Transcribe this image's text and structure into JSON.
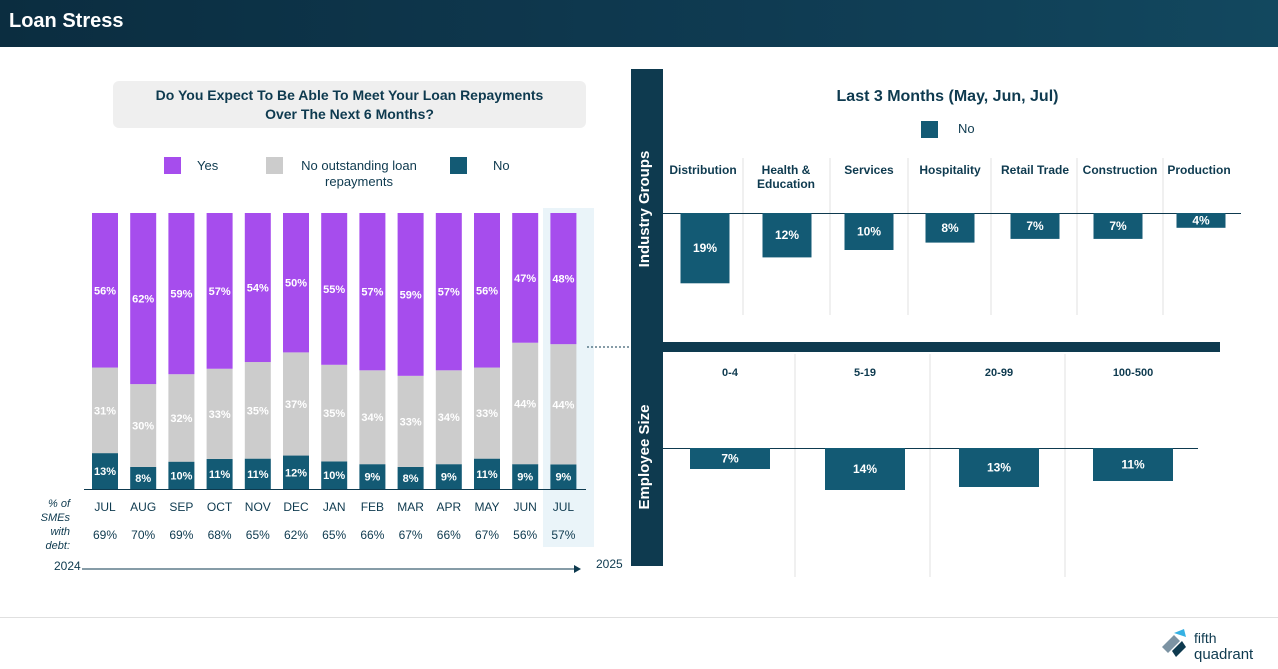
{
  "header": {
    "title": "Loan Stress"
  },
  "left_chart": {
    "question_line1": "Do You Expect To Be Able To Meet Your Loan Repayments",
    "question_line2": "Over The Next 6 Months?",
    "legend": {
      "yes": "Yes",
      "no_outstanding_line1": "No outstanding loan",
      "no_outstanding_line2": "repayments",
      "no": "No"
    },
    "debt_label_lines": [
      "% of",
      "SMEs",
      "with",
      "debt:"
    ],
    "year_start": "2024",
    "year_end": "2025"
  },
  "right_chart": {
    "title": "Last 3 Months (May, Jun, Jul)",
    "legend_no": "No",
    "industry_side_label": "Industry Groups",
    "employee_side_label": "Employee Size",
    "industry_categories": [
      "Distribution",
      "Health &",
      "Education",
      "Services",
      "Hospitality",
      "Retail Trade",
      "Construction",
      "Production"
    ],
    "employee_categories": [
      "0-4",
      "5-19",
      "20-99",
      "100-500"
    ]
  },
  "colors": {
    "yes": "#a64ded",
    "no_outstanding": "#cccccc",
    "no": "#135a74",
    "dark": "#0e3a4f"
  },
  "chart_data": [
    {
      "type": "bar",
      "stacked": true,
      "title": "Do You Expect To Be Able To Meet Your Loan Repayments Over The Next 6 Months?",
      "categories": [
        "JUL",
        "AUG",
        "SEP",
        "OCT",
        "NOV",
        "DEC",
        "JAN",
        "FEB",
        "MAR",
        "APR",
        "MAY",
        "JUN",
        "JUL"
      ],
      "series": [
        {
          "name": "No",
          "values": [
            13,
            8,
            10,
            11,
            11,
            12,
            10,
            9,
            8,
            9,
            11,
            9,
            9
          ]
        },
        {
          "name": "No outstanding loan repayments",
          "values": [
            31,
            30,
            32,
            33,
            35,
            37,
            35,
            34,
            33,
            34,
            33,
            44,
            44
          ]
        },
        {
          "name": "Yes",
          "values": [
            56,
            62,
            59,
            57,
            54,
            50,
            55,
            57,
            59,
            57,
            56,
            47,
            48
          ]
        }
      ],
      "pct_smes_with_debt": [
        "69%",
        "70%",
        "69%",
        "68%",
        "65%",
        "62%",
        "65%",
        "66%",
        "67%",
        "66%",
        "67%",
        "56%",
        "57%"
      ],
      "ylim": [
        0,
        100
      ]
    },
    {
      "type": "bar",
      "title": "Last 3 Months (May, Jun, Jul) - Industry Groups",
      "categories": [
        "Distribution",
        "Health & Education",
        "Services",
        "Hospitality",
        "Retail Trade",
        "Construction",
        "Production"
      ],
      "series": [
        {
          "name": "No",
          "values": [
            19,
            12,
            10,
            8,
            7,
            7,
            4
          ]
        }
      ]
    },
    {
      "type": "bar",
      "title": "Last 3 Months (May, Jun, Jul) - Employee Size",
      "categories": [
        "0-4",
        "5-19",
        "20-99",
        "100-500"
      ],
      "series": [
        {
          "name": "No",
          "values": [
            7,
            14,
            13,
            11
          ]
        }
      ]
    }
  ]
}
